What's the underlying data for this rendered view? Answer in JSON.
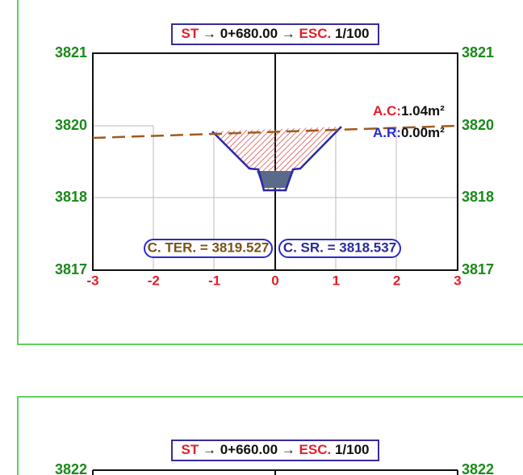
{
  "sections": [
    {
      "title": {
        "prefix": "ST",
        "station": "→ 0+680.00 →",
        "scale_label": "ESC.",
        "scale": "1/100"
      },
      "y_labels_left": [
        "3821",
        "3820",
        "3818",
        "3817"
      ],
      "y_labels_right": [
        "3821",
        "3820",
        "3818",
        "3817"
      ],
      "x_labels": [
        "-3",
        "-2",
        "-1",
        "0",
        "1",
        "2",
        "3"
      ],
      "areas": {
        "cut_label": "A.C:",
        "cut_value": "1.04m²",
        "fill_label": "A.R:",
        "fill_value": "0.00m²"
      },
      "terrain_elevation": "C. TER. = 3819.527",
      "subgrade_elevation": "C. SR. = 3818.537"
    },
    {
      "title": {
        "prefix": "ST",
        "station": "→ 0+660.00 →",
        "scale_label": "ESC.",
        "scale": "1/100"
      },
      "y_labels_left": [
        "3822"
      ],
      "y_labels_right": [
        "3822"
      ]
    }
  ]
}
